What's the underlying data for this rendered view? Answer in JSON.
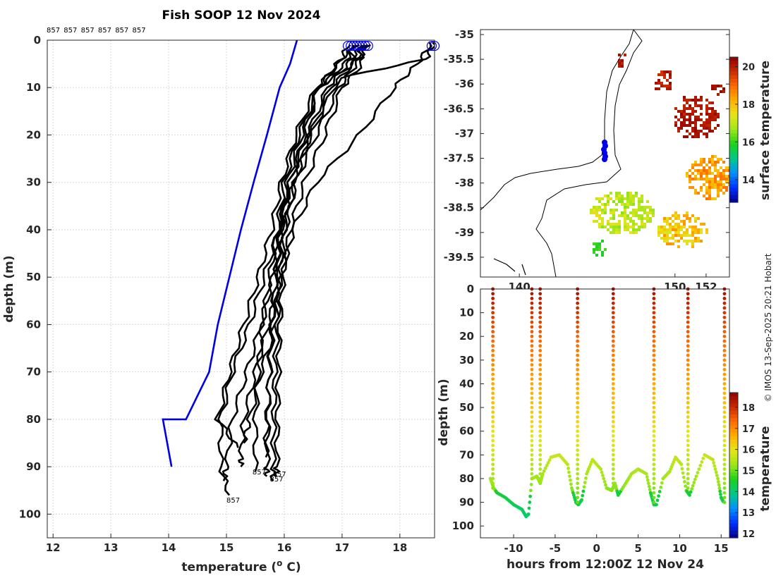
{
  "title": "Fish SOOP 12 Nov 2024",
  "copyright": "© IMOS 13-Sep-2025 20:21 Hobart",
  "profile_ids": [
    "857",
    "857",
    "857",
    "857",
    "857",
    "857"
  ],
  "end_labels": [
    "857",
    "857",
    "857",
    "857"
  ],
  "colors": {
    "profile": "#000000",
    "climatology": "#0000e6",
    "markers": "#0000e6"
  },
  "colormap": [
    "#8b0000",
    "#cc2a00",
    "#ff6a00",
    "#ffb000",
    "#e6e61a",
    "#9ce61a",
    "#1ad21a",
    "#00c88c",
    "#0090ff",
    "#0030ff",
    "#00008b"
  ],
  "chart_data": [
    {
      "type": "line",
      "name": "temperature-profiles",
      "title": "Fish SOOP 12 Nov 2024",
      "xlabel": "temperature (° C)",
      "ylabel": "depth (m)",
      "xlim": [
        11.9,
        18.6
      ],
      "ylim": [
        105,
        0
      ],
      "xticks": [
        12,
        13,
        14,
        15,
        16,
        17,
        18
      ],
      "yticks": [
        0,
        10,
        20,
        30,
        40,
        50,
        60,
        70,
        80,
        90,
        100
      ],
      "grid": true,
      "climatology": {
        "name": "climatology",
        "temp": [
          16.22,
          16.1,
          15.92,
          15.7,
          15.47,
          15.25,
          15.05,
          14.85,
          14.7,
          14.5,
          14.3,
          14.27,
          14.15,
          13.9,
          14.05
        ],
        "depth": [
          0,
          5,
          10,
          20,
          30,
          40,
          50,
          60,
          70,
          75,
          80,
          80,
          80,
          80,
          90
        ]
      },
      "series": [
        {
          "name": "profile-1",
          "temp": [
            17.35,
            17.1,
            16.75,
            16.4,
            16.1,
            15.95,
            15.85,
            15.78,
            15.74,
            15.72,
            15.7,
            15.7
          ],
          "depth": [
            1,
            5,
            10,
            20,
            30,
            40,
            50,
            60,
            70,
            80,
            90,
            92
          ]
        },
        {
          "name": "profile-2",
          "temp": [
            17.45,
            17.25,
            16.95,
            16.55,
            16.2,
            16.02,
            15.93,
            15.88,
            15.84,
            15.82,
            15.81,
            15.8
          ],
          "depth": [
            1,
            5,
            10,
            20,
            30,
            40,
            50,
            60,
            70,
            80,
            90,
            93
          ]
        },
        {
          "name": "profile-3",
          "temp": [
            17.2,
            17.05,
            16.6,
            16.25,
            16.0,
            15.88,
            15.75,
            15.62,
            15.55,
            15.5,
            15.5
          ],
          "depth": [
            1,
            5,
            10,
            20,
            30,
            40,
            50,
            60,
            70,
            80,
            91
          ]
        },
        {
          "name": "profile-4",
          "temp": [
            17.3,
            17.35,
            17.0,
            16.7,
            16.35,
            16.1,
            15.98,
            15.92,
            15.9,
            15.88,
            15.87,
            15.87
          ],
          "depth": [
            1,
            5,
            10,
            20,
            30,
            40,
            50,
            60,
            70,
            80,
            90,
            92
          ]
        },
        {
          "name": "profile-5",
          "temp": [
            18.55,
            18.3,
            17.9,
            17.3,
            16.55,
            16.15,
            15.95,
            15.72,
            15.5,
            15.3,
            15.25,
            15.25
          ],
          "depth": [
            0.5,
            5,
            10,
            20,
            30,
            40,
            50,
            60,
            70,
            80,
            88,
            90
          ]
        },
        {
          "name": "profile-6",
          "temp": [
            18.6,
            18.45,
            16.95,
            16.45,
            16.15,
            15.95,
            15.8,
            15.6,
            15.35,
            15.1,
            15.0,
            14.95
          ],
          "depth": [
            0.5,
            4,
            8,
            20,
            30,
            40,
            50,
            60,
            70,
            80,
            90,
            93
          ]
        },
        {
          "name": "profile-7",
          "temp": [
            17.25,
            16.9,
            16.6,
            16.35,
            16.1,
            15.9,
            15.65,
            15.4,
            15.1,
            14.9,
            14.9,
            15.05
          ],
          "depth": [
            1,
            5,
            10,
            20,
            30,
            40,
            50,
            60,
            70,
            80,
            90,
            96
          ]
        },
        {
          "name": "profile-8",
          "temp": [
            17.4,
            17.2,
            16.6,
            16.3,
            16.05,
            15.92,
            15.85,
            15.8,
            15.75,
            15.7,
            15.68
          ],
          "depth": [
            1,
            5,
            10,
            20,
            30,
            40,
            50,
            60,
            70,
            80,
            88
          ]
        },
        {
          "name": "profile-9",
          "temp": [
            17.15,
            17.2,
            16.8,
            16.45,
            16.18,
            16.0,
            15.9,
            15.85,
            15.6,
            15.4,
            15.3
          ],
          "depth": [
            1,
            5,
            10,
            20,
            30,
            40,
            50,
            60,
            70,
            80,
            85
          ]
        },
        {
          "name": "profile-10",
          "temp": [
            17.1,
            16.95,
            16.55,
            16.2,
            15.95,
            15.78,
            15.55,
            15.3,
            15.05,
            14.85,
            15.2
          ],
          "depth": [
            1,
            5,
            10,
            20,
            30,
            40,
            50,
            60,
            70,
            80,
            86
          ]
        }
      ]
    },
    {
      "type": "heatmap",
      "name": "surface-temperature-map",
      "xlim": [
        137.5,
        153.5
      ],
      "ylim": [
        -39.9,
        -34.9
      ],
      "xticks": [
        140,
        150,
        152
      ],
      "xtick_labels": [
        "140",
        "150",
        "152"
      ],
      "yticks": [
        -35,
        -35.5,
        -36,
        -36.5,
        -37,
        -37.5,
        -38,
        -38.5,
        -39,
        -39.5
      ],
      "yticklabels": [
        "-35",
        "-35.5",
        "-36",
        "-36.5",
        "-37",
        "-37.5",
        "-38",
        "-38.5",
        "-39",
        "-39.5"
      ],
      "colorbar": {
        "label": "surface temperature",
        "range": [
          12.8,
          20.5
        ],
        "ticks": [
          14,
          16,
          18,
          20
        ]
      }
    },
    {
      "type": "scatter",
      "name": "depth-time-section",
      "xlabel": "hours from 12:00Z 12 Nov 24",
      "ylabel": "depth (m)",
      "xlim": [
        -14,
        16
      ],
      "ylim": [
        105,
        0
      ],
      "xticks": [
        -10,
        -5,
        0,
        5,
        10,
        15
      ],
      "yticks": [
        0,
        10,
        20,
        30,
        40,
        50,
        60,
        70,
        80,
        90,
        100
      ],
      "colorbar": {
        "label": "temperature",
        "range": [
          11.8,
          18.7
        ],
        "ticks": [
          12,
          13,
          14,
          15,
          16,
          17,
          18
        ]
      },
      "bottom_depth": {
        "hours": [
          -12.8,
          -12.4,
          -12,
          -11,
          -10,
          -9,
          -8.5,
          -8.2,
          -7.8,
          -7.2,
          -6.8,
          -6.5,
          -5.5,
          -4.5,
          -3.5,
          -3,
          -2.5,
          -2.2,
          -1.8,
          -1.2,
          -0.5,
          0.5,
          1.2,
          1.8,
          2.2,
          2.6,
          3.5,
          4.2,
          5,
          6,
          6.5,
          6.9,
          7.2,
          8,
          8.8,
          9.5,
          10.2,
          10.8,
          11.2,
          12,
          13,
          14,
          14.6,
          15,
          15.3
        ],
        "depth": [
          80,
          84,
          86,
          88,
          91,
          93,
          96,
          95,
          80,
          79,
          82,
          78,
          71,
          70,
          74,
          84,
          90,
          91,
          89,
          78,
          72,
          76,
          84,
          85,
          82,
          87,
          82,
          78,
          76,
          78,
          86,
          91,
          91,
          80,
          77,
          71,
          74,
          85,
          87,
          79,
          70,
          72,
          80,
          88,
          90
        ]
      },
      "profile_hours": [
        -12.5,
        -7.8,
        -6.8,
        -2.3,
        2.0,
        6.9,
        11.0,
        15.4
      ]
    }
  ]
}
